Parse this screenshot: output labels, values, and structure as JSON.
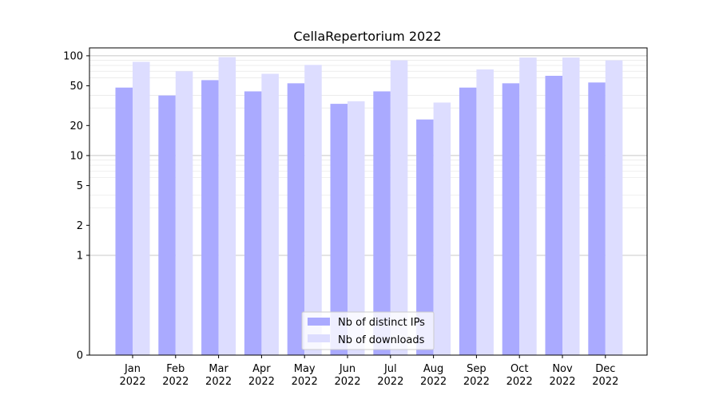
{
  "chart_data": {
    "type": "bar",
    "title": "CellaRepertorium 2022",
    "xlabel": "",
    "ylabel": "",
    "yscale": "symlog",
    "ylim": [
      0,
      120
    ],
    "yticks": [
      0,
      1,
      2,
      5,
      10,
      20,
      50,
      100
    ],
    "ytick_labels": [
      "0",
      "1",
      "2",
      "5",
      "10",
      "20",
      "50",
      "100"
    ],
    "grid": true,
    "legend": "lower-center",
    "categories": [
      {
        "month": "Jan",
        "year": "2022"
      },
      {
        "month": "Feb",
        "year": "2022"
      },
      {
        "month": "Mar",
        "year": "2022"
      },
      {
        "month": "Apr",
        "year": "2022"
      },
      {
        "month": "May",
        "year": "2022"
      },
      {
        "month": "Jun",
        "year": "2022"
      },
      {
        "month": "Jul",
        "year": "2022"
      },
      {
        "month": "Aug",
        "year": "2022"
      },
      {
        "month": "Sep",
        "year": "2022"
      },
      {
        "month": "Oct",
        "year": "2022"
      },
      {
        "month": "Nov",
        "year": "2022"
      },
      {
        "month": "Dec",
        "year": "2022"
      }
    ],
    "series": [
      {
        "name": "Nb of distinct IPs",
        "color": "#aaaaff",
        "values": [
          48,
          40,
          57,
          44,
          53,
          33,
          44,
          23,
          48,
          53,
          63,
          54
        ]
      },
      {
        "name": "Nb of downloads",
        "color": "#ddddff",
        "values": [
          87,
          70,
          97,
          66,
          81,
          35,
          90,
          34,
          73,
          96,
          96,
          90
        ]
      }
    ]
  }
}
